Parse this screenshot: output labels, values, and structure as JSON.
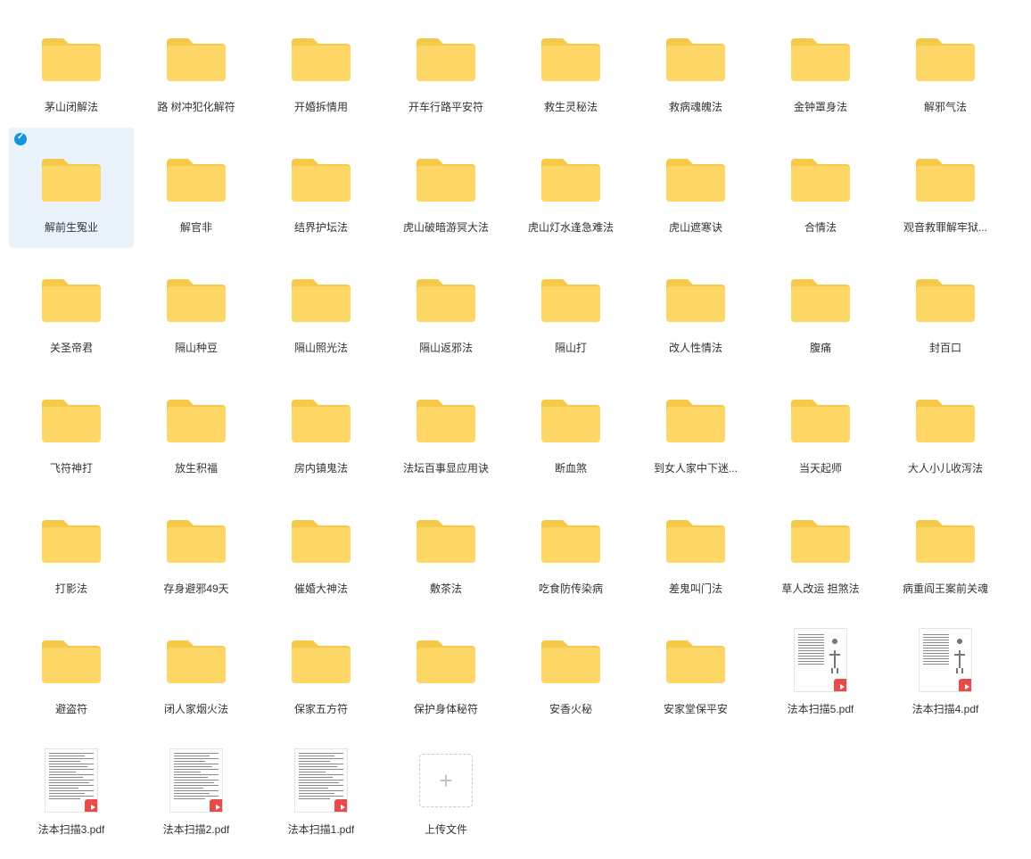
{
  "colors": {
    "folder_light": "#ffd766",
    "folder_dark": "#f7c948",
    "folder_tab": "#f5c33b",
    "selected_bg": "#eaf3fb",
    "check_bg": "#1296db",
    "pdf_badge": "#e94b4b",
    "text": "#333333",
    "border": "#e4e4e4"
  },
  "grid_columns": 8,
  "items": [
    {
      "type": "folder",
      "label": "茅山闭解法"
    },
    {
      "type": "folder",
      "label": "路 树冲犯化解符"
    },
    {
      "type": "folder",
      "label": "开婚拆情用"
    },
    {
      "type": "folder",
      "label": "开车行路平安符"
    },
    {
      "type": "folder",
      "label": "救生灵秘法"
    },
    {
      "type": "folder",
      "label": "救病魂魄法"
    },
    {
      "type": "folder",
      "label": "金钟罩身法"
    },
    {
      "type": "folder",
      "label": "解邪气法"
    },
    {
      "type": "folder",
      "label": "解前生冤业",
      "selected": true
    },
    {
      "type": "folder",
      "label": "解官非"
    },
    {
      "type": "folder",
      "label": "结界护坛法"
    },
    {
      "type": "folder",
      "label": "虎山破暗游冥大法"
    },
    {
      "type": "folder",
      "label": "虎山灯水逢急难法"
    },
    {
      "type": "folder",
      "label": "虎山遮寒诀"
    },
    {
      "type": "folder",
      "label": "合情法"
    },
    {
      "type": "folder",
      "label": "观音救罪解牢狱..."
    },
    {
      "type": "folder",
      "label": "关圣帝君"
    },
    {
      "type": "folder",
      "label": "隔山种豆"
    },
    {
      "type": "folder",
      "label": "隔山照光法"
    },
    {
      "type": "folder",
      "label": "隔山返邪法"
    },
    {
      "type": "folder",
      "label": "隔山打"
    },
    {
      "type": "folder",
      "label": "改人性情法"
    },
    {
      "type": "folder",
      "label": "腹痛"
    },
    {
      "type": "folder",
      "label": "封百口"
    },
    {
      "type": "folder",
      "label": "飞符神打"
    },
    {
      "type": "folder",
      "label": "放生积福"
    },
    {
      "type": "folder",
      "label": "房内镇鬼法"
    },
    {
      "type": "folder",
      "label": "法坛百事显应用诀"
    },
    {
      "type": "folder",
      "label": "断血煞"
    },
    {
      "type": "folder",
      "label": "到女人家中下迷..."
    },
    {
      "type": "folder",
      "label": "当天起师"
    },
    {
      "type": "folder",
      "label": "大人小儿收泻法"
    },
    {
      "type": "folder",
      "label": "打影法"
    },
    {
      "type": "folder",
      "label": "存身避邪49天"
    },
    {
      "type": "folder",
      "label": "催婚大神法"
    },
    {
      "type": "folder",
      "label": "敷茶法"
    },
    {
      "type": "folder",
      "label": "吃食防传染病"
    },
    {
      "type": "folder",
      "label": "差鬼叫门法"
    },
    {
      "type": "folder",
      "label": "草人改运 担煞法"
    },
    {
      "type": "folder",
      "label": "病重阎王案前关魂"
    },
    {
      "type": "folder",
      "label": "避盗符"
    },
    {
      "type": "folder",
      "label": "闭人家烟火法"
    },
    {
      "type": "folder",
      "label": "保家五方符"
    },
    {
      "type": "folder",
      "label": "保护身体秘符"
    },
    {
      "type": "folder",
      "label": "安香火秘"
    },
    {
      "type": "folder",
      "label": "安家堂保平安"
    },
    {
      "type": "pdf",
      "label": "法本扫描5.pdf",
      "variant": "b"
    },
    {
      "type": "pdf",
      "label": "法本扫描4.pdf",
      "variant": "b"
    },
    {
      "type": "pdf",
      "label": "法本扫描3.pdf",
      "variant": "a"
    },
    {
      "type": "pdf",
      "label": "法本扫描2.pdf",
      "variant": "a"
    },
    {
      "type": "pdf",
      "label": "法本扫描1.pdf",
      "variant": "a"
    },
    {
      "type": "upload",
      "label": "上传文件"
    }
  ]
}
